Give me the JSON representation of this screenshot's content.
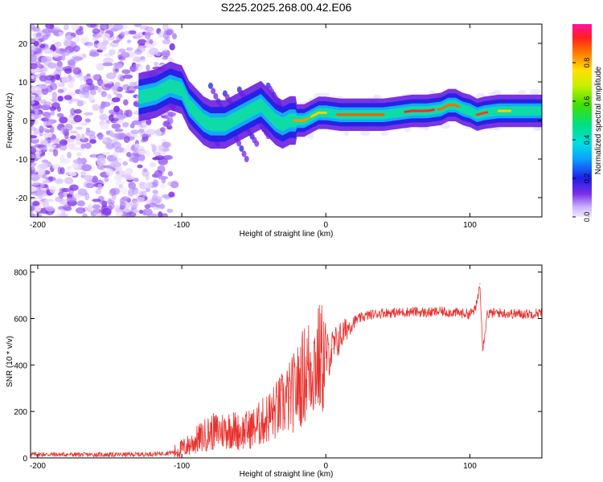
{
  "title": "S225.2025.268.00.42.E06",
  "chart_data": [
    {
      "type": "heatmap",
      "name": "spectrogram",
      "xlabel": "Height of straight line (km)",
      "ylabel": "Frequency (Hz)",
      "xlim": [
        -205,
        150
      ],
      "ylim": [
        -25,
        25
      ],
      "xticks": [
        -200,
        -100,
        0,
        100
      ],
      "yticks": [
        -20,
        -10,
        0,
        10,
        20
      ],
      "xtick_labels": [
        "-200",
        "-100",
        "0",
        "100"
      ],
      "ytick_labels": [
        "-20",
        "-10",
        "0",
        "10",
        "20"
      ],
      "ridge": {
        "x": [
          -130,
          -118,
          -108,
          -100,
          -95,
          -90,
          -85,
          -80,
          -75,
          -70,
          -65,
          -60,
          -55,
          -50,
          -45,
          -40,
          -35,
          -30,
          -25,
          -20,
          -15,
          -10,
          -5,
          0,
          10,
          20,
          30,
          40,
          50,
          60,
          70,
          80,
          85,
          90,
          95,
          100,
          105,
          110,
          120,
          130,
          140,
          150
        ],
        "y": [
          6,
          7,
          9,
          8,
          4,
          2,
          0,
          -1,
          -1,
          -1,
          0,
          1,
          2,
          3,
          4,
          2,
          0,
          -1,
          0,
          0,
          0,
          1,
          2,
          2,
          1.5,
          1.5,
          1.5,
          1.5,
          2,
          2.5,
          2.5,
          3,
          4,
          4,
          3,
          2.5,
          1.5,
          2,
          2.5,
          2.5,
          2.5,
          2.5
        ]
      },
      "colorbar": {
        "label": "Normalized spectral amplitude",
        "range": [
          0,
          1
        ],
        "ticks": [
          0.0,
          0.2,
          0.4,
          0.6,
          0.8
        ],
        "tick_labels": [
          "0.0",
          "0.2",
          "0.4",
          "0.6",
          "0.8"
        ]
      }
    },
    {
      "type": "line",
      "name": "snr",
      "xlabel": "Height of straight line (km)",
      "ylabel": "SNR (10 * v/v)",
      "xlim": [
        -205,
        150
      ],
      "ylim": [
        0,
        830
      ],
      "xticks": [
        -200,
        -100,
        0,
        100
      ],
      "yticks": [
        0,
        200,
        400,
        600,
        800
      ],
      "xtick_labels": [
        "-200",
        "-100",
        "0",
        "100"
      ],
      "ytick_labels": [
        "0",
        "200",
        "400",
        "600",
        "800"
      ],
      "color": "#e8322e",
      "series": [
        {
          "name": "SNR",
          "x": [
            -205,
            -190,
            -170,
            -150,
            -130,
            -115,
            -105,
            -100,
            -95,
            -90,
            -85,
            -80,
            -75,
            -70,
            -65,
            -60,
            -55,
            -50,
            -45,
            -40,
            -35,
            -30,
            -25,
            -20,
            -15,
            -10,
            -5,
            0,
            5,
            10,
            15,
            20,
            25,
            30,
            40,
            50,
            60,
            70,
            80,
            90,
            100,
            104,
            107,
            109,
            112,
            120,
            130,
            140,
            150
          ],
          "y": [
            15,
            15,
            14,
            14,
            15,
            18,
            25,
            40,
            55,
            75,
            95,
            110,
            115,
            120,
            125,
            110,
            120,
            130,
            150,
            175,
            200,
            230,
            260,
            300,
            360,
            400,
            420,
            430,
            470,
            520,
            560,
            590,
            605,
            615,
            625,
            625,
            630,
            625,
            630,
            625,
            620,
            640,
            750,
            470,
            620,
            625,
            620,
            620,
            625
          ]
        }
      ]
    }
  ],
  "colors": {
    "line": "#e8322e",
    "axis": "#000000"
  }
}
